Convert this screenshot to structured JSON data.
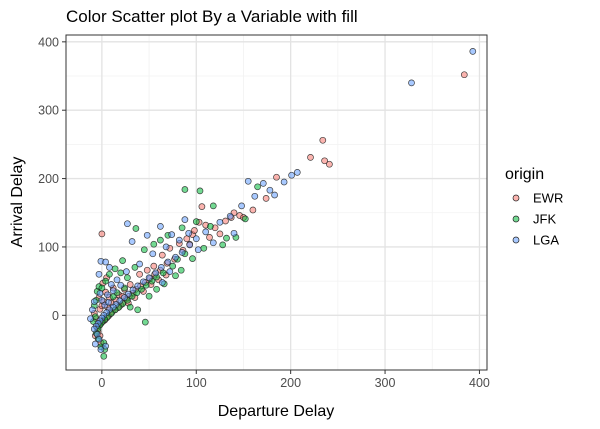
{
  "chart_data": {
    "type": "scatter",
    "title": "Color Scatter plot By a Variable with fill",
    "xlabel": "Departure Delay",
    "ylabel": "Arrival Delay",
    "xlim": [
      -38,
      408
    ],
    "ylim": [
      -80,
      410
    ],
    "x_ticks": [
      0,
      100,
      200,
      300,
      400
    ],
    "y_ticks": [
      0,
      100,
      200,
      300,
      400
    ],
    "grid": true,
    "legend": {
      "title": "origin",
      "position": "right"
    },
    "colors": {
      "EWR": "#F8766D",
      "JFK": "#00BA38",
      "LGA": "#619CFF"
    },
    "series": [
      {
        "name": "EWR",
        "points": [
          [
            384,
            352
          ],
          [
            234,
            256
          ],
          [
            241,
            221
          ],
          [
            236,
            226
          ],
          [
            221,
            231
          ],
          [
            185,
            202
          ],
          [
            174,
            171
          ],
          [
            160,
            154
          ],
          [
            146,
            146
          ],
          [
            137,
            143
          ],
          [
            131,
            138
          ],
          [
            120,
            128
          ],
          [
            114,
            114
          ],
          [
            103,
            136
          ],
          [
            106,
            159
          ],
          [
            96,
            118
          ],
          [
            93,
            104
          ],
          [
            86,
            95
          ],
          [
            77,
            82
          ],
          [
            69,
            76
          ],
          [
            62,
            66
          ],
          [
            56,
            60
          ],
          [
            51,
            54
          ],
          [
            46,
            48
          ],
          [
            41,
            43
          ],
          [
            36,
            38
          ],
          [
            33,
            32
          ],
          [
            29,
            28
          ],
          [
            26,
            24
          ],
          [
            23,
            19
          ],
          [
            20,
            15
          ],
          [
            17,
            11
          ],
          [
            14,
            8
          ],
          [
            11,
            5
          ],
          [
            9,
            2
          ],
          [
            7,
            -1
          ],
          [
            5,
            -4
          ],
          [
            3,
            -7
          ],
          [
            1,
            -9
          ],
          [
            -1,
            -12
          ],
          [
            -3,
            -15
          ],
          [
            -5,
            -18
          ],
          [
            -4,
            -24
          ],
          [
            -2,
            -30
          ],
          [
            0,
            119
          ],
          [
            4,
            34
          ],
          [
            8,
            26
          ],
          [
            12,
            40
          ],
          [
            18,
            30
          ],
          [
            24,
            38
          ],
          [
            30,
            45
          ],
          [
            40,
            60
          ],
          [
            48,
            66
          ],
          [
            55,
            72
          ],
          [
            64,
            88
          ],
          [
            72,
            98
          ],
          [
            82,
            105
          ],
          [
            90,
            112
          ],
          [
            98,
            124
          ],
          [
            110,
            132
          ],
          [
            125,
            119
          ],
          [
            140,
            150
          ],
          [
            150,
            143
          ],
          [
            -2,
            9
          ],
          [
            0,
            14
          ],
          [
            2,
            20
          ],
          [
            6,
            12
          ],
          [
            10,
            18
          ],
          [
            15,
            22
          ],
          [
            22,
            28
          ],
          [
            28,
            18
          ],
          [
            35,
            26
          ],
          [
            44,
            35
          ],
          [
            52,
            45
          ],
          [
            60,
            52
          ],
          [
            68,
            59
          ],
          [
            -6,
            -5
          ],
          [
            -8,
            3
          ],
          [
            -3,
            26
          ],
          [
            1,
            47
          ],
          [
            5,
            55
          ],
          [
            -7,
            -30
          ],
          [
            -1,
            -40
          ]
        ]
      },
      {
        "name": "JFK",
        "points": [
          [
            88,
            184
          ],
          [
            104,
            182
          ],
          [
            165,
            188
          ],
          [
            132,
            113
          ],
          [
            142,
            114
          ],
          [
            128,
            103
          ],
          [
            96,
            83
          ],
          [
            88,
            90
          ],
          [
            80,
            82
          ],
          [
            75,
            72
          ],
          [
            65,
            62
          ],
          [
            58,
            56
          ],
          [
            53,
            50
          ],
          [
            47,
            44
          ],
          [
            42,
            38
          ],
          [
            37,
            33
          ],
          [
            32,
            28
          ],
          [
            27,
            22
          ],
          [
            22,
            17
          ],
          [
            18,
            12
          ],
          [
            14,
            8
          ],
          [
            10,
            3
          ],
          [
            6,
            -2
          ],
          [
            3,
            -6
          ],
          [
            0,
            -10
          ],
          [
            -2,
            -14
          ],
          [
            -4,
            -20
          ],
          [
            -6,
            -26
          ],
          [
            2,
            -40
          ],
          [
            3,
            -50
          ],
          [
            -1,
            -46
          ],
          [
            2,
            -60
          ],
          [
            -4,
            -34
          ],
          [
            -6,
            22
          ],
          [
            -8,
            14
          ],
          [
            -5,
            35
          ],
          [
            -3,
            42
          ],
          [
            -9,
            -9
          ],
          [
            -7,
            -2
          ],
          [
            46,
            -10
          ],
          [
            38,
            8
          ],
          [
            30,
            12
          ],
          [
            20,
            62
          ],
          [
            27,
            55
          ],
          [
            35,
            70
          ],
          [
            45,
            96
          ],
          [
            55,
            104
          ],
          [
            62,
            110
          ],
          [
            70,
            117
          ],
          [
            85,
            128
          ],
          [
            100,
            137
          ],
          [
            115,
            130
          ],
          [
            152,
            141
          ],
          [
            118,
            160
          ],
          [
            36,
            127
          ],
          [
            22,
            80
          ],
          [
            14,
            68
          ],
          [
            8,
            60
          ],
          [
            4,
            50
          ],
          [
            0,
            40
          ],
          [
            12,
            27
          ],
          [
            16,
            33
          ],
          [
            24,
            40
          ],
          [
            50,
            28
          ],
          [
            58,
            38
          ],
          [
            66,
            46
          ],
          [
            78,
            58
          ],
          [
            84,
            66
          ],
          [
            108,
            98
          ]
        ]
      },
      {
        "name": "LGA",
        "points": [
          [
            393,
            386
          ],
          [
            328,
            340
          ],
          [
            207,
            209
          ],
          [
            201,
            205
          ],
          [
            193,
            195
          ],
          [
            171,
            193
          ],
          [
            155,
            196
          ],
          [
            178,
            183
          ],
          [
            162,
            174
          ],
          [
            136,
            145
          ],
          [
            125,
            136
          ],
          [
            110,
            122
          ],
          [
            100,
            112
          ],
          [
            93,
            103
          ],
          [
            85,
            92
          ],
          [
            78,
            85
          ],
          [
            70,
            78
          ],
          [
            63,
            70
          ],
          [
            57,
            62
          ],
          [
            50,
            55
          ],
          [
            44,
            49
          ],
          [
            38,
            43
          ],
          [
            33,
            37
          ],
          [
            28,
            31
          ],
          [
            24,
            26
          ],
          [
            19,
            21
          ],
          [
            15,
            16
          ],
          [
            12,
            12
          ],
          [
            8,
            8
          ],
          [
            5,
            4
          ],
          [
            2,
            0
          ],
          [
            0,
            -4
          ],
          [
            -2,
            -8
          ],
          [
            -4,
            -12
          ],
          [
            -6,
            -16
          ],
          [
            -8,
            -20
          ],
          [
            -5,
            -28
          ],
          [
            -3,
            -35
          ],
          [
            -7,
            -42
          ],
          [
            -1,
            -50
          ],
          [
            4,
            -45
          ],
          [
            27,
            134
          ],
          [
            32,
            108
          ],
          [
            48,
            117
          ],
          [
            62,
            130
          ],
          [
            74,
            118
          ],
          [
            118,
            106
          ],
          [
            140,
            120
          ],
          [
            102,
            96
          ],
          [
            -1,
            79
          ],
          [
            4,
            78
          ],
          [
            8,
            70
          ],
          [
            -3,
            60
          ],
          [
            -8,
            20
          ],
          [
            -10,
            8
          ],
          [
            -12,
            -5
          ],
          [
            10,
            45
          ],
          [
            16,
            52
          ],
          [
            26,
            64
          ],
          [
            40,
            75
          ],
          [
            54,
            90
          ],
          [
            68,
            100
          ],
          [
            82,
            110
          ],
          [
            92,
            120
          ],
          [
            0,
            22
          ],
          [
            6,
            30
          ],
          [
            12,
            36
          ],
          [
            20,
            44
          ],
          [
            -2,
            32
          ],
          [
            3,
            15
          ],
          [
            7,
            19
          ],
          [
            64,
            48
          ],
          [
            72,
            64
          ],
          [
            148,
            160
          ],
          [
            183,
            176
          ],
          [
            88,
            140
          ]
        ]
      }
    ]
  }
}
